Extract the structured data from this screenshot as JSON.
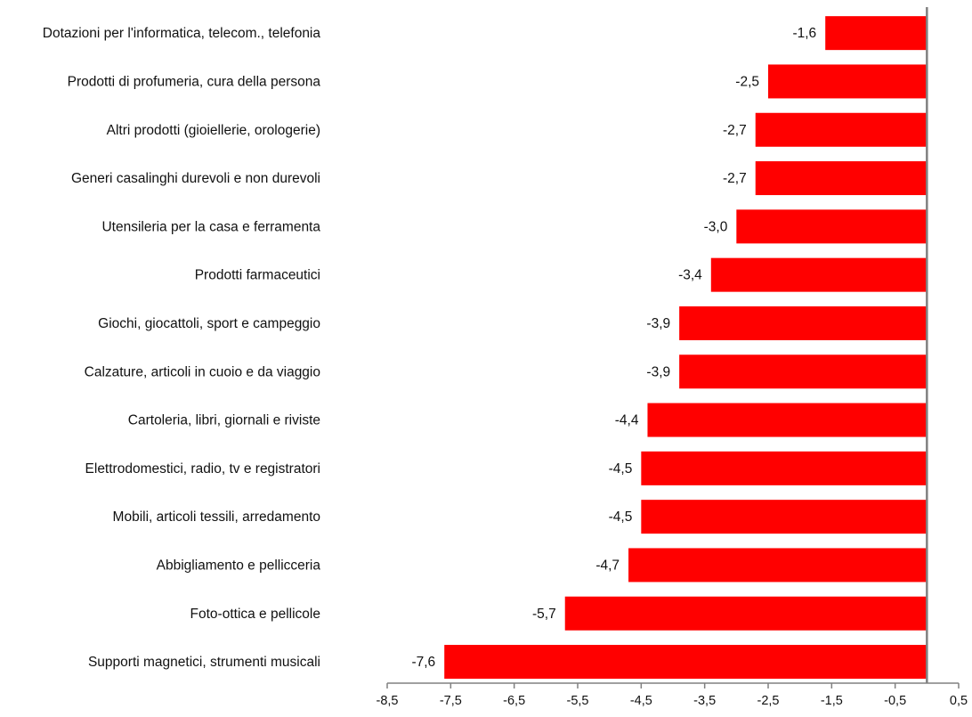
{
  "chart_data": {
    "type": "bar",
    "orientation": "horizontal",
    "title": "",
    "xlabel": "",
    "ylabel": "",
    "categories": [
      "Dotazioni per l'informatica, telecom., telefonia",
      "Prodotti di profumeria, cura della persona",
      "Altri prodotti (gioiellerie, orologerie)",
      "Generi casalinghi durevoli e non durevoli",
      "Utensileria per la casa e ferramenta",
      "Prodotti farmaceutici",
      "Giochi, giocattoli, sport e campeggio",
      "Calzature, articoli in cuoio e da viaggio",
      "Cartoleria, libri, giornali e riviste",
      "Elettrodomestici, radio, tv e registratori",
      "Mobili, articoli tessili, arredamento",
      "Abbigliamento e pellicceria",
      "Foto-ottica e pellicole",
      "Supporti magnetici, strumenti  musicali"
    ],
    "values": [
      -1.6,
      -2.5,
      -2.7,
      -2.7,
      -3.0,
      -3.4,
      -3.9,
      -3.9,
      -4.4,
      -4.5,
      -4.5,
      -4.7,
      -5.7,
      -7.6
    ],
    "data_labels": [
      "-1,6",
      "-2,5",
      "-2,7",
      "-2,7",
      "-3,0",
      "-3,4",
      "-3,9",
      "-3,9",
      "-4,4",
      "-4,5",
      "-4,5",
      "-4,7",
      "-5,7",
      "-7,6"
    ],
    "xlim": [
      -8.5,
      0.5
    ],
    "x_ticks": [
      -8.5,
      -7.5,
      -6.5,
      -5.5,
      -4.5,
      -3.5,
      -2.5,
      -1.5,
      -0.5,
      0.5
    ],
    "x_tick_labels": [
      "-8,5",
      "-7,5",
      "-6,5",
      "-5,5",
      "-4,5",
      "-3,5",
      "-2,5",
      "-1,5",
      "-0,5",
      "0,5"
    ],
    "grid": false,
    "legend": "none",
    "colors": {
      "bar": "#ff0000",
      "axis": "#808080",
      "text": "#111111"
    }
  }
}
